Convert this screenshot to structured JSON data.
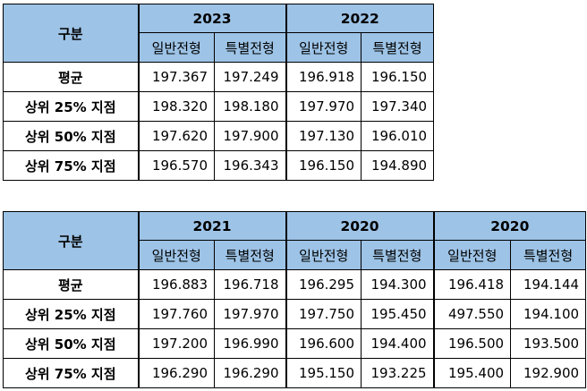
{
  "table1": {
    "corner_label": "구분",
    "years": [
      "2023",
      "2022"
    ],
    "sub_headers": [
      "일반전형",
      "특별전형",
      "일반전형",
      "특별전형"
    ],
    "rows": [
      {
        "label": "평균",
        "values": [
          "197.367",
          "197.249",
          "196.918",
          "196.150"
        ]
      },
      {
        "label": "상위 25% 지점",
        "values": [
          "198.320",
          "198.180",
          "197.970",
          "197.340"
        ]
      },
      {
        "label": "상위 50% 지점",
        "values": [
          "197.620",
          "197.900",
          "197.130",
          "196.010"
        ]
      },
      {
        "label": "상위 75% 지점",
        "values": [
          "196.570",
          "196.343",
          "196.150",
          "194.890"
        ]
      }
    ]
  },
  "table2": {
    "corner_label": "구분",
    "years": [
      "2021",
      "2020",
      "2020"
    ],
    "sub_headers": [
      "일반전형",
      "특별전형",
      "일반전형",
      "특별전형",
      "일반전형",
      "특별전형"
    ],
    "rows": [
      {
        "label": "평균",
        "values": [
          "196.883",
          "196.718",
          "196.295",
          "194.300",
          "196.418",
          "194.144"
        ]
      },
      {
        "label": "상위 25% 지점",
        "values": [
          "197.760",
          "197.970",
          "197.750",
          "195.450",
          "497.550",
          "194.100"
        ]
      },
      {
        "label": "상위 50% 지점",
        "values": [
          "197.200",
          "196.990",
          "196.600",
          "194.400",
          "196.500",
          "193.500"
        ]
      },
      {
        "label": "상위 75% 지점",
        "values": [
          "196.290",
          "196.290",
          "195.150",
          "193.225",
          "195.400",
          "192.900"
        ]
      }
    ]
  },
  "colors": {
    "header_fill": "#9dc3e6",
    "border": "#000000",
    "cell_fill": "#ffffff"
  }
}
